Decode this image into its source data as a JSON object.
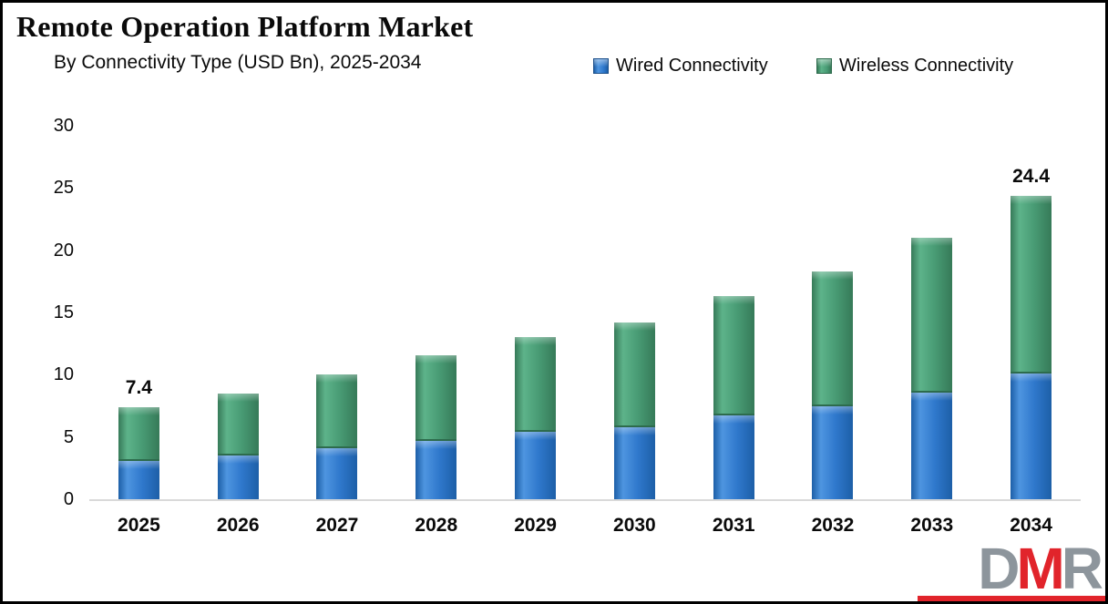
{
  "header": {
    "title": "Remote Operation Platform Market",
    "subtitle": "By Connectivity Type (USD Bn), 2025-2034"
  },
  "legend": {
    "wired": {
      "label": "Wired Connectivity",
      "color": "#2f78cc"
    },
    "wireless": {
      "label": "Wireless Connectivity",
      "color": "#489b74"
    }
  },
  "logo": {
    "letter1": "D",
    "letter2": "M",
    "letter3": "R"
  },
  "chart_data": {
    "type": "bar",
    "stacked": true,
    "title": "Remote Operation Platform Market",
    "subtitle": "By Connectivity Type (USD Bn), 2025-2034",
    "categories": [
      "2025",
      "2026",
      "2027",
      "2028",
      "2029",
      "2030",
      "2031",
      "2032",
      "2033",
      "2034"
    ],
    "series": [
      {
        "name": "Wired Connectivity",
        "color": "#2f78cc",
        "values": [
          3.1,
          3.5,
          4.1,
          4.7,
          5.4,
          5.8,
          6.7,
          7.5,
          8.6,
          10.1
        ]
      },
      {
        "name": "Wireless Connectivity",
        "color": "#489b74",
        "values": [
          4.3,
          5.0,
          5.9,
          6.9,
          7.6,
          8.4,
          9.6,
          10.8,
          12.4,
          14.3
        ]
      }
    ],
    "totals": [
      7.4,
      8.5,
      10.0,
      11.6,
      13.0,
      14.2,
      16.3,
      18.3,
      21.0,
      24.4
    ],
    "bar_labels": {
      "2025": "7.4",
      "2034": "24.4"
    },
    "xlabel": "",
    "ylabel": "",
    "ylim": [
      0,
      30
    ],
    "yticks": [
      0,
      5,
      10,
      15,
      20,
      25,
      30
    ],
    "grid": false,
    "legend_position": "top",
    "baseline_color": "#d9d9d9"
  }
}
